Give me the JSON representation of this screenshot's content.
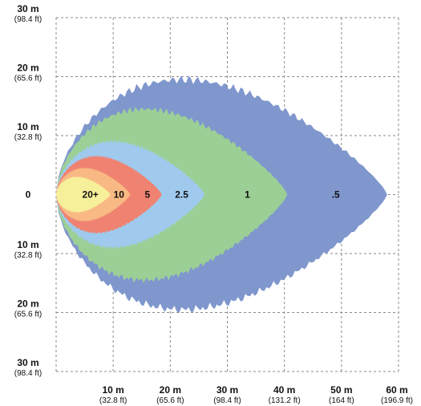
{
  "chart_data": {
    "type": "area",
    "title": "",
    "xlabel": "",
    "ylabel": "",
    "x_range_m": [
      0,
      60
    ],
    "y_range_m": [
      -30,
      30
    ],
    "grid": true,
    "x_ticks": [
      {
        "value": 10,
        "m": "10 m",
        "ft": "(32.8 ft)"
      },
      {
        "value": 20,
        "m": "20 m",
        "ft": "(65.6 ft)"
      },
      {
        "value": 30,
        "m": "30 m",
        "ft": "(98.4 ft)"
      },
      {
        "value": 40,
        "m": "40 m",
        "ft": "(131.2 ft)"
      },
      {
        "value": 50,
        "m": "50 m",
        "ft": "(164 ft)"
      },
      {
        "value": 60,
        "m": "60 m",
        "ft": "(196.9 ft)"
      }
    ],
    "y_ticks": [
      {
        "value": 30,
        "m": "30 m",
        "ft": "(98.4 ft)"
      },
      {
        "value": 20,
        "m": "20 m",
        "ft": "(65.6 ft)"
      },
      {
        "value": 10,
        "m": "10 m",
        "ft": "(32.8 ft)"
      },
      {
        "value": 0,
        "m": "0",
        "ft": ""
      },
      {
        "value": -10,
        "m": "10 m",
        "ft": "(32.8 ft)"
      },
      {
        "value": -20,
        "m": "20 m",
        "ft": "(65.6 ft)"
      },
      {
        "value": -30,
        "m": "30 m",
        "ft": "(98.4 ft)"
      }
    ],
    "series": [
      {
        "name": ".5",
        "color": "#7f97cd",
        "x_end": 58,
        "half_width": 19.5,
        "label_x": 49.0
      },
      {
        "name": "1",
        "color": "#9ccf96",
        "x_end": 40.5,
        "half_width": 14.5,
        "label_x": 33.5
      },
      {
        "name": "2.5",
        "color": "#9fcaee",
        "x_end": 26.0,
        "half_width": 9.0,
        "label_x": 22.0
      },
      {
        "name": "5",
        "color": "#ef8270",
        "x_end": 18.5,
        "half_width": 6.5,
        "label_x": 16.0
      },
      {
        "name": "10",
        "color": "#f8b984",
        "x_end": 13.0,
        "half_width": 4.5,
        "label_x": 11.0
      },
      {
        "name": "20+",
        "color": "#f7f09b",
        "x_end": 9.5,
        "half_width": 3.0,
        "label_x": 6.0
      }
    ]
  }
}
